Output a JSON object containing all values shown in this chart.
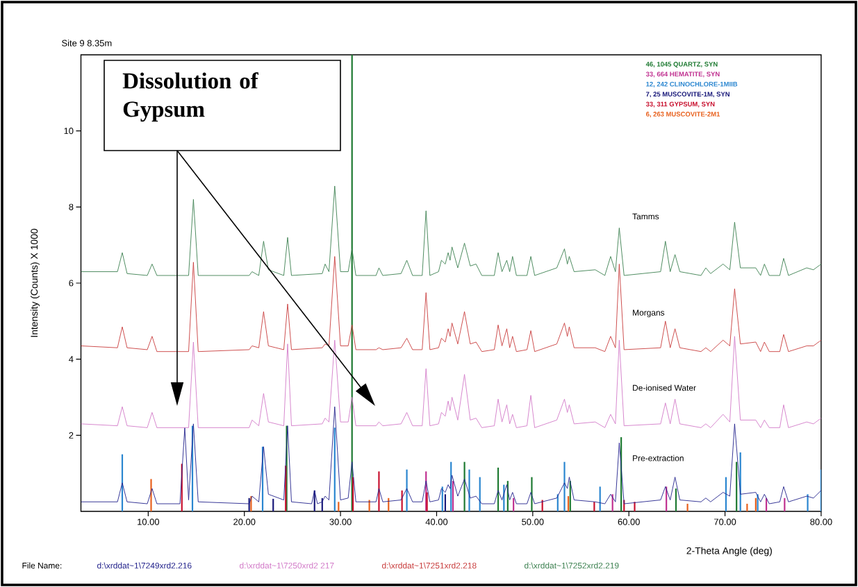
{
  "chart_data": {
    "type": "line",
    "title": "Site 9 8.35m",
    "xlabel": "2-Theta Angle (deg)",
    "ylabel": "Intensity (Counts) X 1000",
    "xlim": [
      3,
      80
    ],
    "ylim": [
      0,
      12
    ],
    "xticks": [
      {
        "value": 10,
        "label": "10.00"
      },
      {
        "value": 20,
        "label": "20.00"
      },
      {
        "value": 30,
        "label": "30.00"
      },
      {
        "value": 40,
        "label": "40.00"
      },
      {
        "value": 50,
        "label": "50.00"
      },
      {
        "value": 60,
        "label": "60.00"
      },
      {
        "value": 70,
        "label": "70.00"
      },
      {
        "value": 80,
        "label": "80.00"
      }
    ],
    "yticks": [
      2,
      4,
      6,
      8,
      10
    ],
    "legend": "top right",
    "annotations": [
      "Dissolution of Gypsum",
      "File Name:",
      "d:\\xrddat~1\\7249xrd2.216",
      "d:\\xrddat~1\\7250xrd2 217",
      "d:\\xrddat~1\\7251xrd2.218",
      "d:\\xrddat~1\\7252xrd2.219"
    ],
    "series": [
      {
        "name": "Pre-extraction",
        "color": "#23238c",
        "x": [
          3,
          6.8,
          7.3,
          7.8,
          9.9,
          10.4,
          10.9,
          13.3,
          13.8,
          14.2,
          14.7,
          15.2,
          20.5,
          20.8,
          21.5,
          22.0,
          22.5,
          24.1,
          24.5,
          24.9,
          27.0,
          27.3,
          27.6,
          28.1,
          28.4,
          28.8,
          29.4,
          30.0,
          30.8,
          31.2,
          31.6,
          33.7,
          34.0,
          34.4,
          36.3,
          36.9,
          37.5,
          38.5,
          38.9,
          39.3,
          40.2,
          40.5,
          40.9,
          41.2,
          41.4,
          41.6,
          42.2,
          42.9,
          43.5,
          44.1,
          44.7,
          46.0,
          46.4,
          46.8,
          47.3,
          47.6,
          47.9,
          48.3,
          49.4,
          49.8,
          50.2,
          52.5,
          53.3,
          53.6,
          53.8,
          54.3,
          56.5,
          57.5,
          58.1,
          58.6,
          59.0,
          59.5,
          63.3,
          63.8,
          64.3,
          64.8,
          65.3,
          67.5,
          68.0,
          68.5,
          69.8,
          70.5,
          71.0,
          71.6,
          73.2,
          73.7,
          74.1,
          74.6,
          75.7,
          76.1,
          76.6,
          78.5,
          79.2,
          80
        ],
        "values": [
          0.25,
          0.25,
          0.75,
          0.25,
          0.2,
          0.6,
          0.2,
          0.2,
          2.2,
          0.3,
          2.3,
          0.25,
          0.2,
          0.4,
          0.25,
          1.7,
          0.45,
          0.3,
          2.25,
          0.25,
          0.2,
          0.55,
          0.2,
          0.25,
          0.4,
          0.3,
          2.75,
          0.3,
          0.35,
          1.3,
          0.25,
          0.25,
          0.6,
          0.25,
          0.3,
          0.6,
          0.25,
          0.25,
          0.8,
          0.25,
          0.3,
          0.6,
          0.5,
          0.7,
          0.6,
          0.95,
          0.4,
          0.85,
          0.35,
          0.4,
          0.2,
          0.2,
          0.55,
          0.3,
          0.7,
          0.3,
          0.5,
          0.2,
          0.2,
          0.5,
          0.2,
          0.35,
          0.75,
          0.6,
          0.9,
          0.3,
          0.25,
          0.2,
          0.45,
          0.25,
          1.8,
          0.2,
          0.3,
          0.65,
          0.3,
          0.9,
          0.3,
          0.25,
          0.35,
          0.25,
          0.5,
          0.4,
          2.3,
          0.45,
          0.5,
          0.25,
          0.45,
          0.2,
          0.25,
          0.65,
          0.25,
          0.4,
          0.35,
          0.55
        ]
      },
      {
        "name": "De-ionised Water",
        "color": "#d27ac8",
        "x": [
          3,
          6.8,
          7.3,
          7.8,
          9.9,
          10.4,
          10.9,
          14.2,
          14.7,
          15.2,
          20.5,
          20.8,
          21.5,
          22.0,
          22.5,
          24.1,
          24.5,
          24.9,
          28.1,
          28.4,
          28.8,
          29.4,
          30.0,
          30.8,
          31.2,
          31.6,
          33.7,
          34.0,
          34.4,
          36.3,
          36.9,
          37.5,
          38.5,
          38.9,
          39.3,
          40.2,
          40.5,
          40.9,
          41.2,
          41.4,
          41.6,
          42.2,
          42.9,
          43.5,
          44.1,
          44.7,
          46.0,
          46.4,
          46.8,
          47.3,
          47.6,
          47.9,
          48.3,
          49.4,
          49.8,
          50.2,
          52.5,
          53.3,
          53.6,
          53.8,
          54.3,
          56.5,
          57.5,
          58.1,
          58.6,
          59.0,
          59.5,
          63.3,
          63.8,
          64.3,
          64.8,
          65.3,
          67.5,
          68.0,
          68.5,
          69.8,
          70.5,
          71.0,
          71.6,
          73.2,
          73.7,
          74.1,
          74.6,
          75.7,
          76.1,
          76.6,
          78.5,
          79.2,
          80
        ],
        "values": [
          2.3,
          2.25,
          2.75,
          2.25,
          2.2,
          2.6,
          2.2,
          2.2,
          4.45,
          2.2,
          2.2,
          2.4,
          2.25,
          3.1,
          2.35,
          2.25,
          4.4,
          2.25,
          2.3,
          2.45,
          2.35,
          4.5,
          2.35,
          2.35,
          3.0,
          2.25,
          2.25,
          2.35,
          2.25,
          2.3,
          2.6,
          2.25,
          2.25,
          3.75,
          2.25,
          2.3,
          2.6,
          2.5,
          2.9,
          2.65,
          3.0,
          2.4,
          3.6,
          2.4,
          2.45,
          2.2,
          2.25,
          2.95,
          2.35,
          2.8,
          2.3,
          2.55,
          2.2,
          2.25,
          3.05,
          2.2,
          2.4,
          2.95,
          2.6,
          2.8,
          2.3,
          2.35,
          2.2,
          2.55,
          2.3,
          4.5,
          2.25,
          2.3,
          2.85,
          2.3,
          2.95,
          2.3,
          2.2,
          2.3,
          2.2,
          2.55,
          2.35,
          4.6,
          2.4,
          2.4,
          2.2,
          2.4,
          2.2,
          2.2,
          2.8,
          2.2,
          2.35,
          2.3,
          2.45
        ]
      },
      {
        "name": "Morgans",
        "color": "#c83c3c",
        "x": [
          3,
          6.8,
          7.3,
          7.8,
          9.9,
          10.4,
          10.9,
          14.2,
          14.7,
          15.2,
          20.5,
          20.8,
          21.5,
          22.0,
          22.5,
          24.1,
          24.5,
          24.9,
          28.1,
          28.4,
          28.8,
          29.4,
          30.0,
          30.8,
          31.2,
          31.6,
          33.7,
          34.0,
          34.4,
          36.3,
          36.9,
          37.5,
          38.5,
          38.9,
          39.3,
          40.2,
          40.5,
          40.9,
          41.2,
          41.4,
          41.6,
          42.2,
          42.9,
          43.5,
          44.1,
          44.7,
          46.0,
          46.4,
          46.8,
          47.3,
          47.6,
          47.9,
          48.3,
          49.4,
          49.8,
          50.2,
          52.5,
          53.3,
          53.6,
          53.8,
          54.3,
          56.5,
          57.5,
          58.1,
          58.6,
          59.0,
          59.5,
          63.3,
          63.8,
          64.3,
          64.8,
          65.3,
          67.5,
          68.0,
          68.5,
          69.8,
          70.5,
          71.0,
          71.6,
          73.2,
          73.7,
          74.1,
          74.6,
          75.7,
          76.1,
          76.6,
          78.5,
          79.2,
          80
        ],
        "values": [
          4.35,
          4.3,
          4.85,
          4.3,
          4.25,
          4.6,
          4.2,
          4.2,
          6.55,
          4.2,
          4.25,
          4.35,
          4.3,
          5.25,
          4.35,
          4.25,
          5.45,
          4.25,
          4.3,
          4.4,
          4.35,
          6.7,
          4.35,
          4.35,
          4.9,
          4.25,
          4.25,
          4.3,
          4.25,
          4.3,
          4.55,
          4.25,
          4.25,
          5.75,
          4.25,
          4.3,
          4.55,
          4.45,
          4.8,
          4.6,
          4.95,
          4.4,
          5.25,
          4.4,
          4.45,
          4.2,
          4.25,
          4.9,
          4.35,
          4.8,
          4.3,
          4.6,
          4.2,
          4.25,
          4.75,
          4.2,
          4.4,
          4.95,
          4.6,
          4.85,
          4.3,
          4.3,
          4.2,
          4.6,
          4.3,
          6.5,
          4.25,
          4.3,
          5.0,
          4.3,
          4.8,
          4.3,
          4.2,
          4.3,
          4.2,
          4.5,
          4.35,
          5.85,
          4.4,
          4.45,
          4.2,
          4.45,
          4.2,
          4.2,
          4.65,
          4.2,
          4.35,
          4.35,
          4.5
        ]
      },
      {
        "name": "Tamms",
        "color": "#3c8050",
        "x": [
          3,
          6.8,
          7.3,
          7.8,
          9.9,
          10.4,
          10.9,
          14.2,
          14.7,
          15.2,
          20.5,
          20.8,
          21.5,
          22.0,
          22.5,
          24.1,
          24.5,
          24.9,
          28.1,
          28.4,
          28.8,
          29.4,
          30.0,
          30.8,
          31.2,
          31.6,
          33.7,
          34.0,
          34.4,
          36.3,
          36.9,
          37.5,
          38.5,
          38.9,
          39.3,
          40.2,
          40.5,
          40.9,
          41.2,
          41.4,
          41.6,
          42.2,
          42.9,
          43.5,
          44.1,
          44.7,
          46.0,
          46.4,
          46.8,
          47.3,
          47.6,
          47.9,
          48.3,
          49.4,
          49.8,
          50.2,
          52.5,
          53.3,
          53.6,
          53.8,
          54.3,
          56.5,
          57.5,
          58.1,
          58.6,
          59.0,
          59.5,
          63.3,
          63.8,
          64.3,
          64.8,
          65.3,
          67.5,
          68.0,
          68.5,
          69.8,
          70.5,
          71.0,
          71.6,
          73.2,
          73.7,
          74.1,
          74.6,
          75.7,
          76.1,
          76.6,
          78.5,
          79.2,
          80
        ],
        "values": [
          6.3,
          6.3,
          6.8,
          6.25,
          6.2,
          6.5,
          6.2,
          6.2,
          8.2,
          6.2,
          6.2,
          6.3,
          6.2,
          7.1,
          6.35,
          6.2,
          7.2,
          6.2,
          6.25,
          6.5,
          6.3,
          8.55,
          6.3,
          6.3,
          6.9,
          6.2,
          6.2,
          6.4,
          6.2,
          6.25,
          6.6,
          6.2,
          6.2,
          7.9,
          6.2,
          6.3,
          6.6,
          6.5,
          6.8,
          6.6,
          6.95,
          6.4,
          7.05,
          6.45,
          6.5,
          6.2,
          6.2,
          6.8,
          6.3,
          6.6,
          6.3,
          6.7,
          6.2,
          6.2,
          6.7,
          6.2,
          6.4,
          6.9,
          6.5,
          6.7,
          6.3,
          6.35,
          6.2,
          6.7,
          6.3,
          7.45,
          6.2,
          6.3,
          7.1,
          6.3,
          6.75,
          6.3,
          6.2,
          6.4,
          6.25,
          6.5,
          6.35,
          7.6,
          6.4,
          6.4,
          6.2,
          6.5,
          6.2,
          6.2,
          6.65,
          6.2,
          6.4,
          6.35,
          6.5
        ]
      },
      {
        "name": "46, 1045 QUARTZ, SYN",
        "type": "bar",
        "color": "#1e7a32",
        "x": [
          24.4,
          31.2,
          42.9,
          46.4,
          47.4,
          49.9,
          53.9,
          59.2,
          64.9,
          71.2
        ],
        "values": [
          2.25,
          12,
          1.3,
          1.15,
          0.8,
          0.9,
          0.8,
          1.95,
          0.6,
          1.3
        ]
      },
      {
        "name": "33, 664 HEMATITE, SYN",
        "type": "bar",
        "color": "#c03090",
        "x": [
          38.9,
          41.7,
          48.0,
          58.3,
          63.9,
          74.3,
          76.2
        ],
        "values": [
          1.05,
          0.8,
          0.35,
          0.45,
          0.65,
          0.35,
          0.35
        ]
      },
      {
        "name": "12, 242 CLINOCHLORE-1MIIB",
        "type": "bar",
        "color": "#2a86d0",
        "x": [
          7.3,
          14.6,
          21.9,
          29.4,
          36.9,
          40.6,
          41.5,
          43.4,
          44.5,
          47.0,
          52.6,
          53.3,
          57.0,
          70.1,
          71.6,
          73.4,
          78.6,
          80.0
        ],
        "values": [
          1.5,
          2.25,
          1.7,
          2.2,
          1.1,
          0.65,
          1.3,
          1.1,
          0.9,
          0.7,
          0.45,
          1.3,
          0.65,
          0.9,
          1.55,
          0.45,
          0.45,
          1.1
        ]
      },
      {
        "name": "7, 25 MUSCOVITE-1M, SYN",
        "type": "bar",
        "color": "#1a1a7a",
        "x": [
          20.5,
          23.0,
          27.3,
          28.1,
          40.9
        ],
        "values": [
          0.35,
          0.33,
          0.55,
          0.35,
          0.45
        ]
      },
      {
        "name": "33, 311 GYPSUM, SYN",
        "type": "bar",
        "color": "#c8102e",
        "x": [
          13.5,
          24.3,
          31.3,
          34.0,
          36.4,
          39.0,
          51.0,
          56.4,
          59.5,
          60.6
        ],
        "values": [
          1.25,
          1.2,
          0.9,
          1.05,
          0.55,
          0.5,
          0.3,
          0.25,
          0.3,
          0.25
        ]
      },
      {
        "name": "6, 263 MUSCOVITE-2M1",
        "type": "bar",
        "color": "#e8601c",
        "x": [
          10.3,
          20.7,
          29.8,
          33.0,
          35.0,
          53.7,
          66.1,
          72.3,
          73.2
        ],
        "values": [
          0.85,
          0.4,
          0.25,
          0.3,
          0.35,
          0.4,
          0.2,
          0.2,
          0.35
        ]
      }
    ]
  }
}
